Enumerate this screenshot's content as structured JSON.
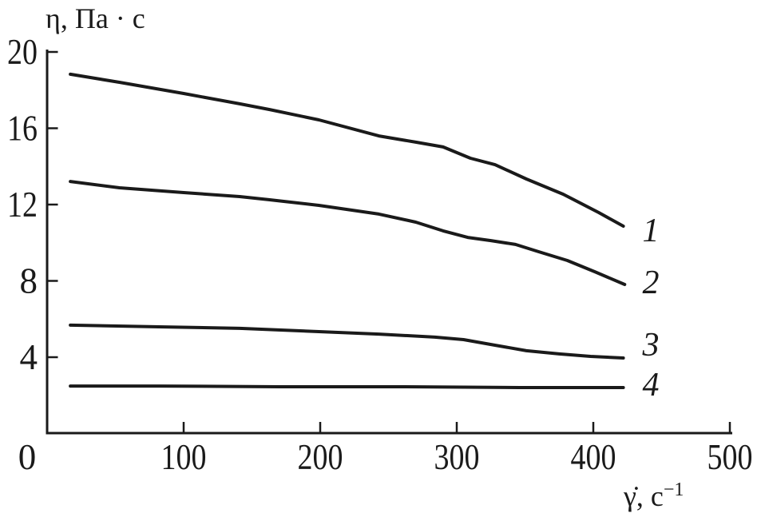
{
  "figure": {
    "background": "#ffffff"
  },
  "chart_data": {
    "type": "line",
    "title": "",
    "ylabel": "η, Па · с",
    "xlabel": "γ̇, с⁻¹",
    "xlabel_main": "γ̇, с",
    "xlabel_sup": "−1",
    "xlim": [
      0,
      500
    ],
    "ylim": [
      0,
      20
    ],
    "x_ticks": [
      0,
      100,
      200,
      300,
      400,
      500
    ],
    "y_ticks": [
      4,
      8,
      12,
      16,
      20
    ],
    "grid": false,
    "legend_position": "labels-at-curve-ends",
    "axis_color": "#1a1a1a",
    "line_color": "#1a1a1a",
    "series": [
      {
        "name": "1",
        "label": "1",
        "label_x": 436,
        "label_y": 10.66,
        "points": [
          [
            17,
            18.83
          ],
          [
            53,
            18.41
          ],
          [
            100,
            17.82
          ],
          [
            141,
            17.28
          ],
          [
            163,
            16.98
          ],
          [
            199,
            16.44
          ],
          [
            243,
            15.6
          ],
          [
            270,
            15.27
          ],
          [
            290,
            15.02
          ],
          [
            310,
            14.43
          ],
          [
            328,
            14.09
          ],
          [
            351,
            13.34
          ],
          [
            378,
            12.54
          ],
          [
            404,
            11.58
          ],
          [
            422,
            10.87
          ]
        ]
      },
      {
        "name": "2",
        "label": "2",
        "label_x": 436,
        "label_y": 7.94,
        "points": [
          [
            17,
            13.21
          ],
          [
            53,
            12.88
          ],
          [
            100,
            12.63
          ],
          [
            141,
            12.42
          ],
          [
            163,
            12.25
          ],
          [
            199,
            11.96
          ],
          [
            243,
            11.5
          ],
          [
            270,
            11.08
          ],
          [
            290,
            10.62
          ],
          [
            308,
            10.28
          ],
          [
            325,
            10.11
          ],
          [
            343,
            9.91
          ],
          [
            360,
            9.53
          ],
          [
            381,
            9.07
          ],
          [
            401,
            8.48
          ],
          [
            423,
            7.81
          ]
        ]
      },
      {
        "name": "3",
        "label": "3",
        "label_x": 436,
        "label_y": 4.67,
        "points": [
          [
            17,
            5.68
          ],
          [
            82,
            5.59
          ],
          [
            141,
            5.51
          ],
          [
            199,
            5.34
          ],
          [
            243,
            5.21
          ],
          [
            284,
            5.05
          ],
          [
            305,
            4.92
          ],
          [
            328,
            4.63
          ],
          [
            351,
            4.34
          ],
          [
            375,
            4.17
          ],
          [
            398,
            4.04
          ],
          [
            422,
            3.96
          ]
        ]
      },
      {
        "name": "4",
        "label": "4",
        "label_x": 436,
        "label_y": 2.58,
        "points": [
          [
            17,
            2.49
          ],
          [
            82,
            2.49
          ],
          [
            170,
            2.45
          ],
          [
            258,
            2.45
          ],
          [
            346,
            2.41
          ],
          [
            422,
            2.41
          ]
        ]
      }
    ]
  }
}
